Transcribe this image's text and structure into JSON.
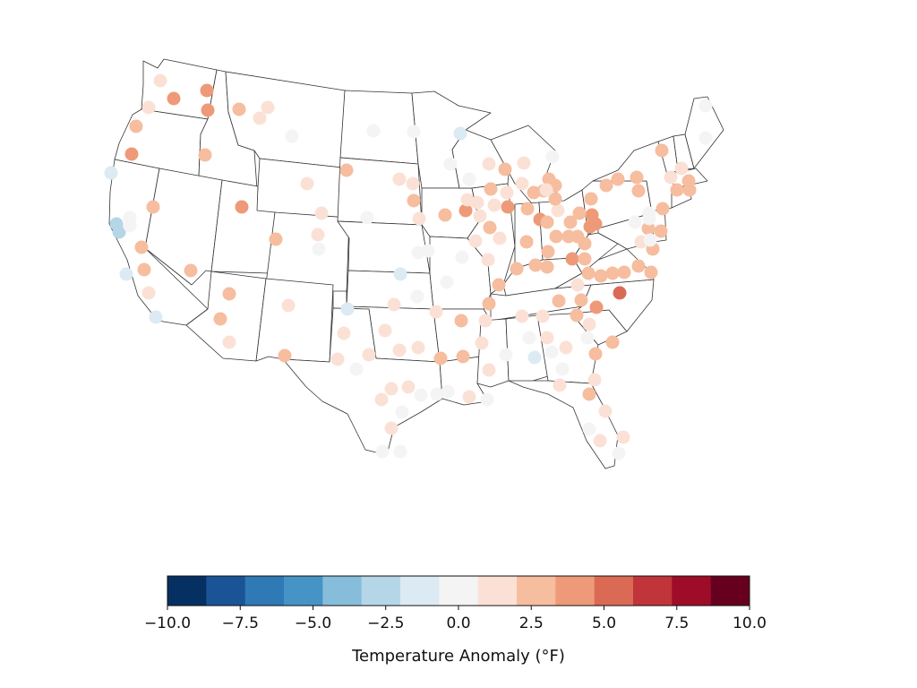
{
  "colorbar": {
    "label": "Temperature Anomaly (°F)",
    "ticks": [
      "−10.0",
      "−7.5",
      "−5.0",
      "−2.5",
      "0.0",
      "2.5",
      "5.0",
      "7.5",
      "10.0"
    ],
    "tick_values": [
      -10,
      -7.5,
      -5,
      -2.5,
      0,
      2.5,
      5,
      7.5,
      10
    ],
    "range": [
      -10,
      10
    ],
    "colors": [
      "#053061",
      "#1a5496",
      "#2f79b5",
      "#4694c6",
      "#86bdda",
      "#b5d6e7",
      "#dbeaf3",
      "#f4f4f4",
      "#fbe1d5",
      "#f6bd9f",
      "#ee9a78",
      "#db6a55",
      "#c0353a",
      "#9d0d27",
      "#67001f"
    ]
  }
}
